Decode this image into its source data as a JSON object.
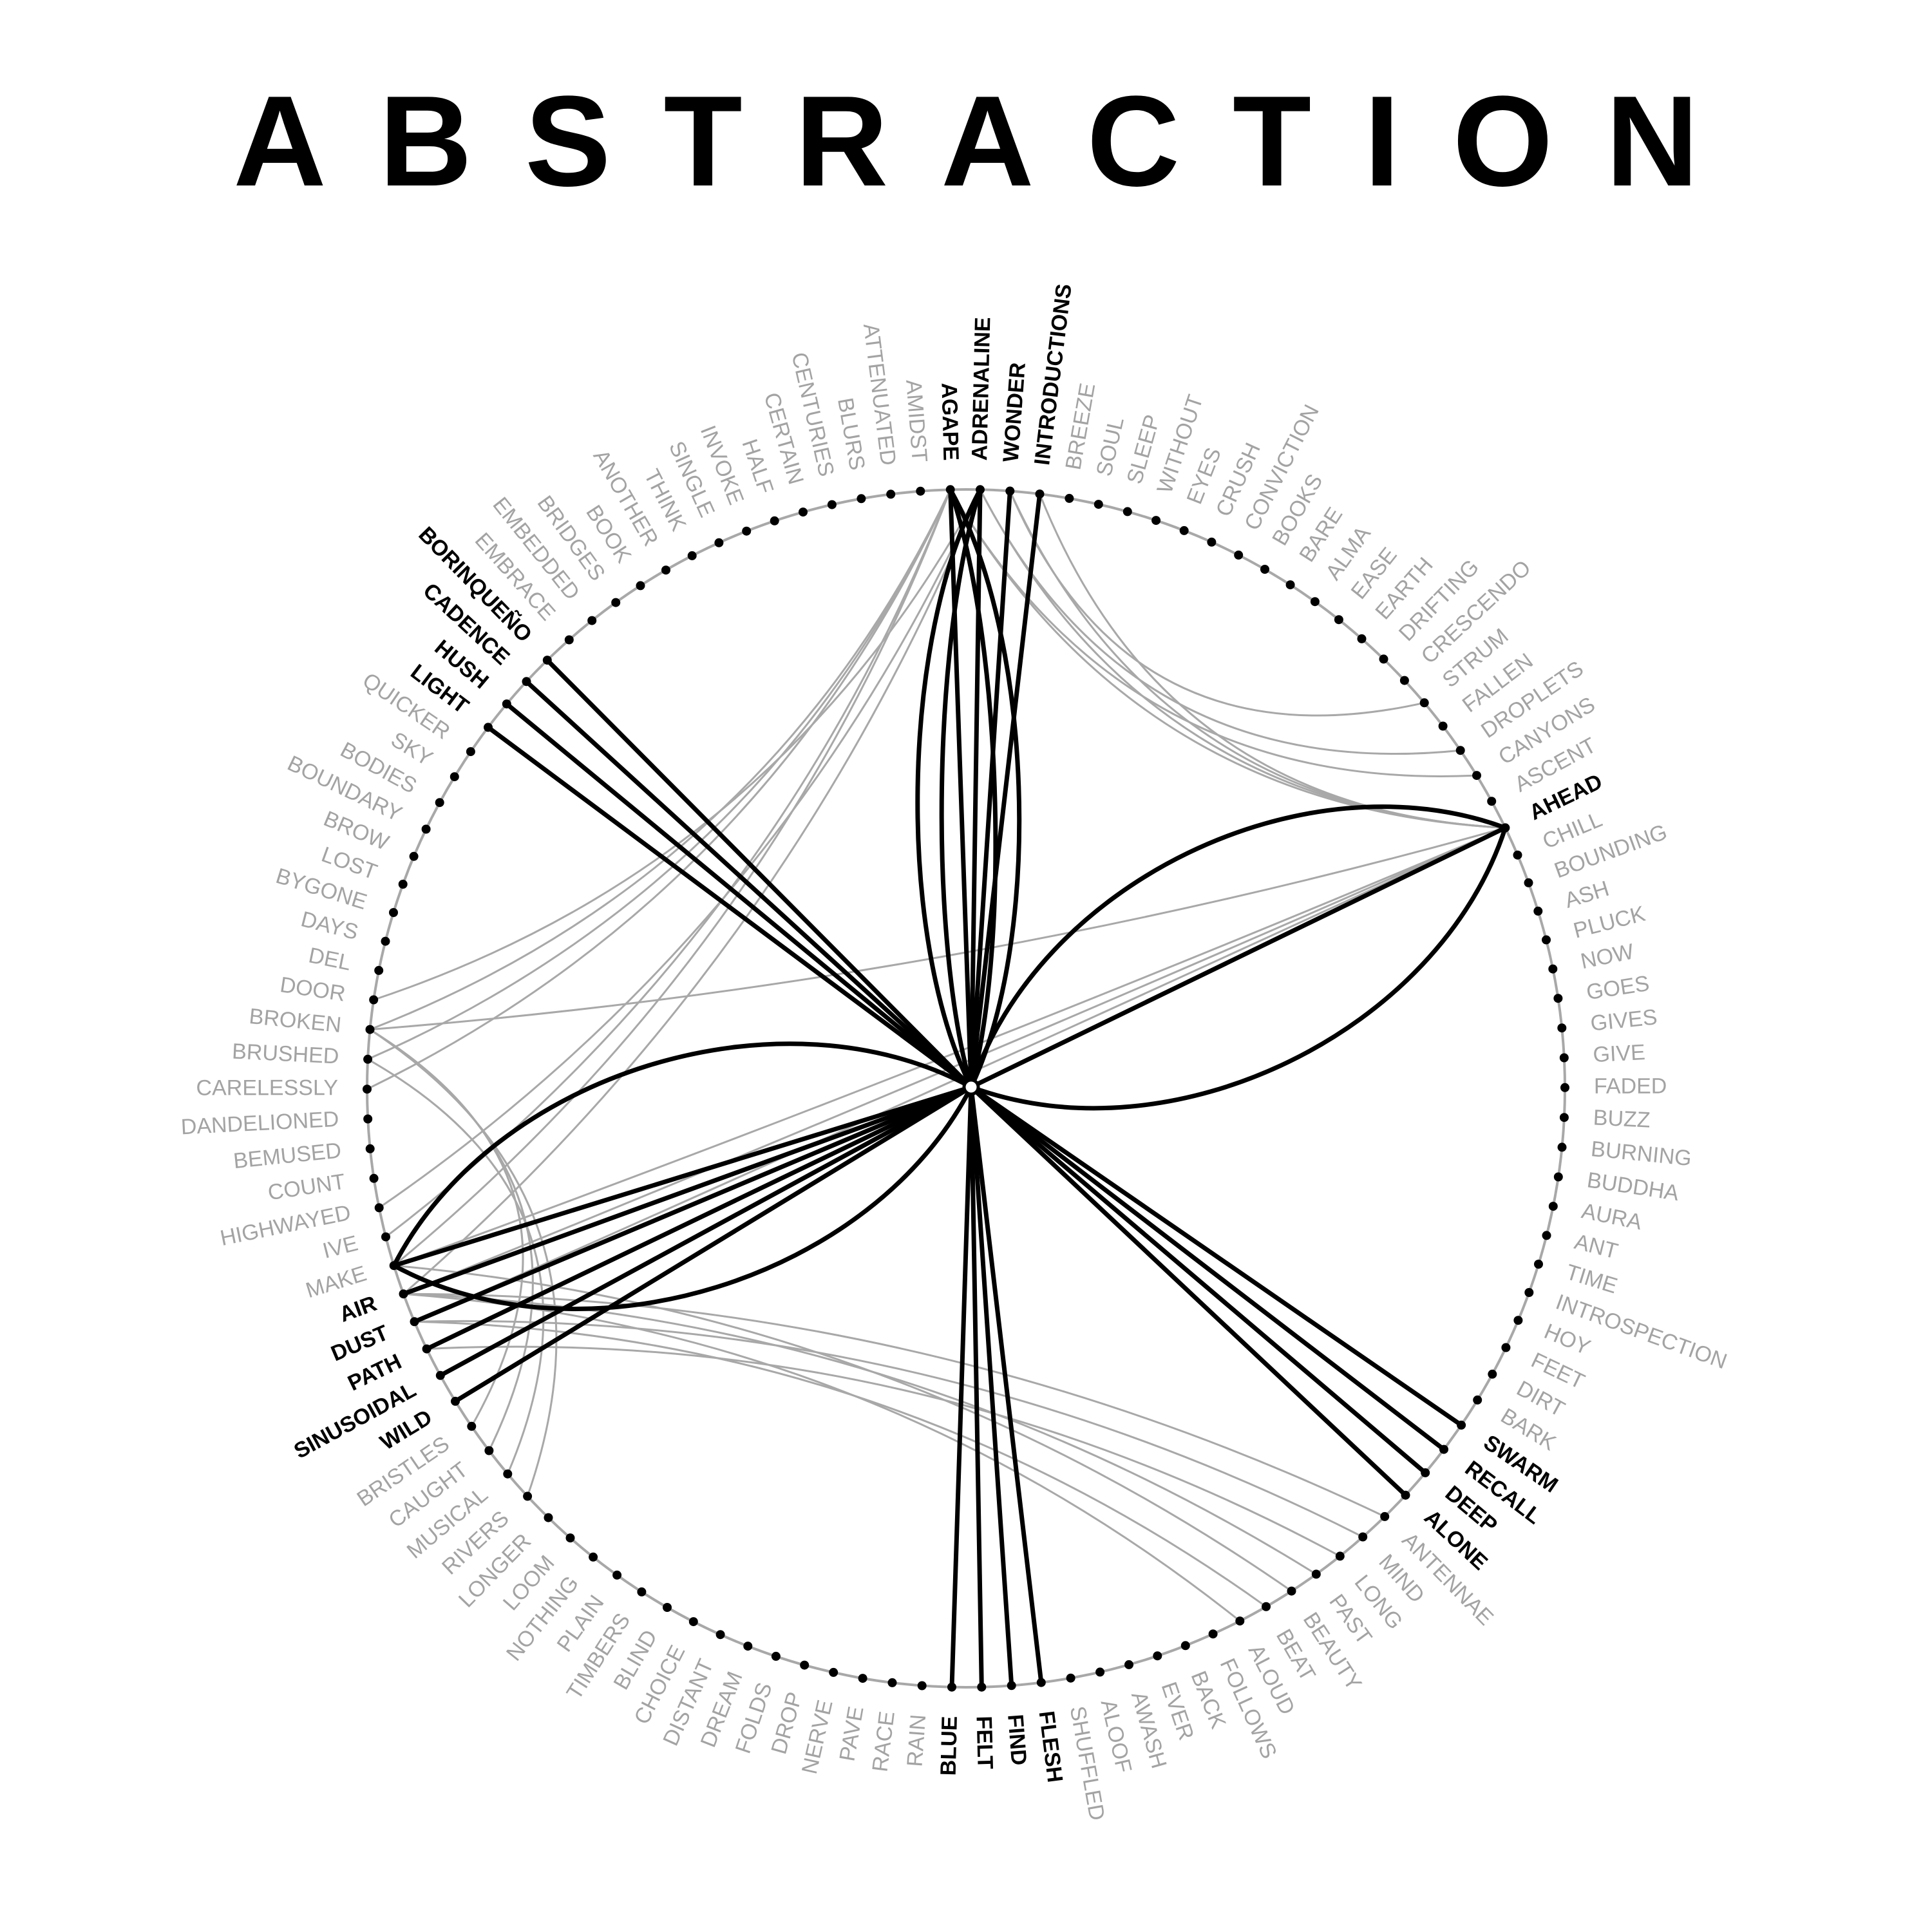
{
  "title": "ABSTRACTION",
  "colors": {
    "ink": "#000000",
    "faint": "#a8a8a8",
    "label_grey": "#a3a3a3",
    "background": "#ffffff"
  },
  "hub_word": null,
  "ring_words": [
    {
      "text": "AGAPE",
      "hi": true
    },
    {
      "text": "ADRENALINE",
      "hi": true
    },
    {
      "text": "WONDER",
      "hi": true
    },
    {
      "text": "INTRODUCTIONS",
      "hi": true
    },
    {
      "text": "BREEZE"
    },
    {
      "text": "SOUL"
    },
    {
      "text": "SLEEP"
    },
    {
      "text": "WITHOUT"
    },
    {
      "text": "EYES"
    },
    {
      "text": "CRUSH"
    },
    {
      "text": "CONVICTION"
    },
    {
      "text": "BOOKS"
    },
    {
      "text": "BARE"
    },
    {
      "text": "ALMA"
    },
    {
      "text": "EASE"
    },
    {
      "text": "EARTH"
    },
    {
      "text": "DRIFTING"
    },
    {
      "text": "CRESCENDO"
    },
    {
      "text": "STRUM"
    },
    {
      "text": "FALLEN"
    },
    {
      "text": "DROPLETS"
    },
    {
      "text": "CANYONS"
    },
    {
      "text": "ASCENT"
    },
    {
      "text": "AHEAD",
      "hi": true
    },
    {
      "text": "CHILL"
    },
    {
      "text": "BOUNDING"
    },
    {
      "text": "ASH"
    },
    {
      "text": "PLUCK"
    },
    {
      "text": "NOW"
    },
    {
      "text": "GOES"
    },
    {
      "text": "GIVES"
    },
    {
      "text": "GIVE"
    },
    {
      "text": "FADED"
    },
    {
      "text": "BUZZ"
    },
    {
      "text": "BURNING"
    },
    {
      "text": "BUDDHA"
    },
    {
      "text": "AURA"
    },
    {
      "text": "ANT"
    },
    {
      "text": "TIME"
    },
    {
      "text": "INTROSPECTION"
    },
    {
      "text": "HOY"
    },
    {
      "text": "FEET"
    },
    {
      "text": "DIRT"
    },
    {
      "text": "BARK"
    },
    {
      "text": "SWARM",
      "hi": true
    },
    {
      "text": "RECALL",
      "hi": true
    },
    {
      "text": "DEEP",
      "hi": true
    },
    {
      "text": "ALONE",
      "hi": true
    },
    {
      "text": "ANTENNAE"
    },
    {
      "text": "MIND"
    },
    {
      "text": "LONG"
    },
    {
      "text": "PAST"
    },
    {
      "text": "BEAUTY"
    },
    {
      "text": "BEAT"
    },
    {
      "text": "ALOUD"
    },
    {
      "text": "FOLLOWS"
    },
    {
      "text": "BACK"
    },
    {
      "text": "EVER"
    },
    {
      "text": "AWASH"
    },
    {
      "text": "ALOOF"
    },
    {
      "text": "SHUFFLED"
    },
    {
      "text": "FLESH",
      "hi": true
    },
    {
      "text": "FIND",
      "hi": true
    },
    {
      "text": "FELT",
      "hi": true
    },
    {
      "text": "BLUE",
      "hi": true
    },
    {
      "text": "RAIN"
    },
    {
      "text": "RACE"
    },
    {
      "text": "PAVE"
    },
    {
      "text": "NERVE"
    },
    {
      "text": "DROP"
    },
    {
      "text": "FOLDS"
    },
    {
      "text": "DREAM"
    },
    {
      "text": "DISTANT"
    },
    {
      "text": "CHOICE"
    },
    {
      "text": "BLIND"
    },
    {
      "text": "TIMBERS"
    },
    {
      "text": "PLAIN"
    },
    {
      "text": "NOTHING"
    },
    {
      "text": "LOOM"
    },
    {
      "text": "LONGER"
    },
    {
      "text": "RIVERS"
    },
    {
      "text": "MUSICAL"
    },
    {
      "text": "CAUGHT"
    },
    {
      "text": "BRISTLES"
    },
    {
      "text": "WILD",
      "hi": true
    },
    {
      "text": "SINUSOIDAL",
      "hi": true
    },
    {
      "text": "PATH",
      "hi": true
    },
    {
      "text": "DUST",
      "hi": true
    },
    {
      "text": "AIR",
      "hi": true
    },
    {
      "text": "MAKE"
    },
    {
      "text": "IVE"
    },
    {
      "text": "HIGHWAYED"
    },
    {
      "text": "COUNT"
    },
    {
      "text": "BEMUSED"
    },
    {
      "text": "DANDELIONED"
    },
    {
      "text": "CARELESSLY"
    },
    {
      "text": "BRUSHED"
    },
    {
      "text": "BROKEN"
    },
    {
      "text": "DOOR"
    },
    {
      "text": "DEL"
    },
    {
      "text": "DAYS"
    },
    {
      "text": "BYGONE"
    },
    {
      "text": "LOST"
    },
    {
      "text": "BROW"
    },
    {
      "text": "BOUNDARY"
    },
    {
      "text": "BODIES"
    },
    {
      "text": "SKY"
    },
    {
      "text": "QUICKER"
    },
    {
      "text": "LIGHT",
      "hi": true
    },
    {
      "text": "HUSH",
      "hi": true
    },
    {
      "text": "CADENCE",
      "hi": true
    },
    {
      "text": "BORINQUEÑO",
      "hi": true
    },
    {
      "text": "EMBRACE"
    },
    {
      "text": "EMBEDDED"
    },
    {
      "text": "BRIDGES"
    },
    {
      "text": "BOOK"
    },
    {
      "text": "ANOTHER"
    },
    {
      "text": "THINK"
    },
    {
      "text": "SINGLE"
    },
    {
      "text": "INVOKE"
    },
    {
      "text": "HALF"
    },
    {
      "text": "CERTAIN"
    },
    {
      "text": "CENTURIES"
    },
    {
      "text": "BLURS"
    },
    {
      "text": "ATTENUATED"
    },
    {
      "text": "AMIDST"
    }
  ],
  "strong_links": [
    [
      "INTRODUCTIONS",
      "hub",
      "straight"
    ],
    [
      "WONDER",
      "hub",
      "straight"
    ],
    [
      "AGAPE",
      "hub",
      "curve",
      -120
    ],
    [
      "AGAPE",
      "hub",
      "curve",
      -70
    ],
    [
      "AGAPE",
      "hub",
      "curve",
      0
    ],
    [
      "ADRENALINE",
      "hub",
      "curve",
      0
    ],
    [
      "ADRENALINE",
      "hub",
      "curve",
      70
    ],
    [
      "ADRENALINE",
      "hub",
      "curve",
      120
    ],
    [
      "AHEAD",
      "hub",
      "straight"
    ],
    [
      "AHEAD",
      "hub",
      "curve",
      -240
    ],
    [
      "AHEAD",
      "hub",
      "curve",
      240
    ],
    [
      "SWARM",
      "hub",
      "straight"
    ],
    [
      "RECALL",
      "hub",
      "straight"
    ],
    [
      "DEEP",
      "hub",
      "straight"
    ],
    [
      "ALONE",
      "hub",
      "straight"
    ],
    [
      "FLESH",
      "hub",
      "straight"
    ],
    [
      "FIND",
      "hub",
      "straight"
    ],
    [
      "FELT",
      "hub",
      "straight"
    ],
    [
      "BLUE",
      "hub",
      "straight"
    ],
    [
      "AIR",
      "hub",
      "straight"
    ],
    [
      "DUST",
      "hub",
      "straight"
    ],
    [
      "PATH",
      "hub",
      "straight"
    ],
    [
      "SINUSOIDAL",
      "hub",
      "straight"
    ],
    [
      "WILD",
      "hub",
      "straight"
    ],
    [
      "MAKE",
      "hub",
      "straight"
    ],
    [
      "MAKE",
      "hub",
      "curve",
      -240
    ],
    [
      "MAKE",
      "hub",
      "curve",
      240
    ],
    [
      "LIGHT",
      "hub",
      "straight"
    ],
    [
      "HUSH",
      "hub",
      "straight"
    ],
    [
      "CADENCE",
      "hub",
      "straight"
    ],
    [
      "BORINQUEÑO",
      "hub",
      "straight"
    ]
  ],
  "faint_links": [
    [
      "AGAPE",
      "BROKEN"
    ],
    [
      "AGAPE",
      "BRUSHED"
    ],
    [
      "AGAPE",
      "CARELESSLY"
    ],
    [
      "ADRENALINE",
      "DOOR"
    ],
    [
      "AGAPE",
      "IVE"
    ],
    [
      "ADRENALINE",
      "HIGHWAYED"
    ],
    [
      "AGAPE",
      "MAKE"
    ],
    [
      "ADRENALINE",
      "AIR"
    ],
    [
      "AGAPE",
      "AHEAD"
    ],
    [
      "ADRENALINE",
      "AHEAD"
    ],
    [
      "WONDER",
      "AHEAD"
    ],
    [
      "INTRODUCTIONS",
      "AHEAD"
    ],
    [
      "AGAPE",
      "CANYONS"
    ],
    [
      "ADRENALINE",
      "DROPLETS"
    ],
    [
      "WONDER",
      "STRUM"
    ],
    [
      "AHEAD",
      "BROKEN"
    ],
    [
      "AHEAD",
      "AIR"
    ],
    [
      "AHEAD",
      "MAKE"
    ],
    [
      "AHEAD",
      "DUST"
    ],
    [
      "AHEAD",
      "PATH"
    ],
    [
      "AIR",
      "ANTENNAE"
    ],
    [
      "DUST",
      "MIND"
    ],
    [
      "PATH",
      "LONG"
    ],
    [
      "AIR",
      "PAST"
    ],
    [
      "MAKE",
      "BEAUTY"
    ],
    [
      "DUST",
      "BEAT"
    ],
    [
      "AIR",
      "ALOUD"
    ],
    [
      "BROKEN",
      "BRISTLES"
    ],
    [
      "BROKEN",
      "CAUGHT"
    ],
    [
      "BRUSHED",
      "MUSICAL"
    ],
    [
      "BROKEN",
      "RIVERS"
    ]
  ]
}
